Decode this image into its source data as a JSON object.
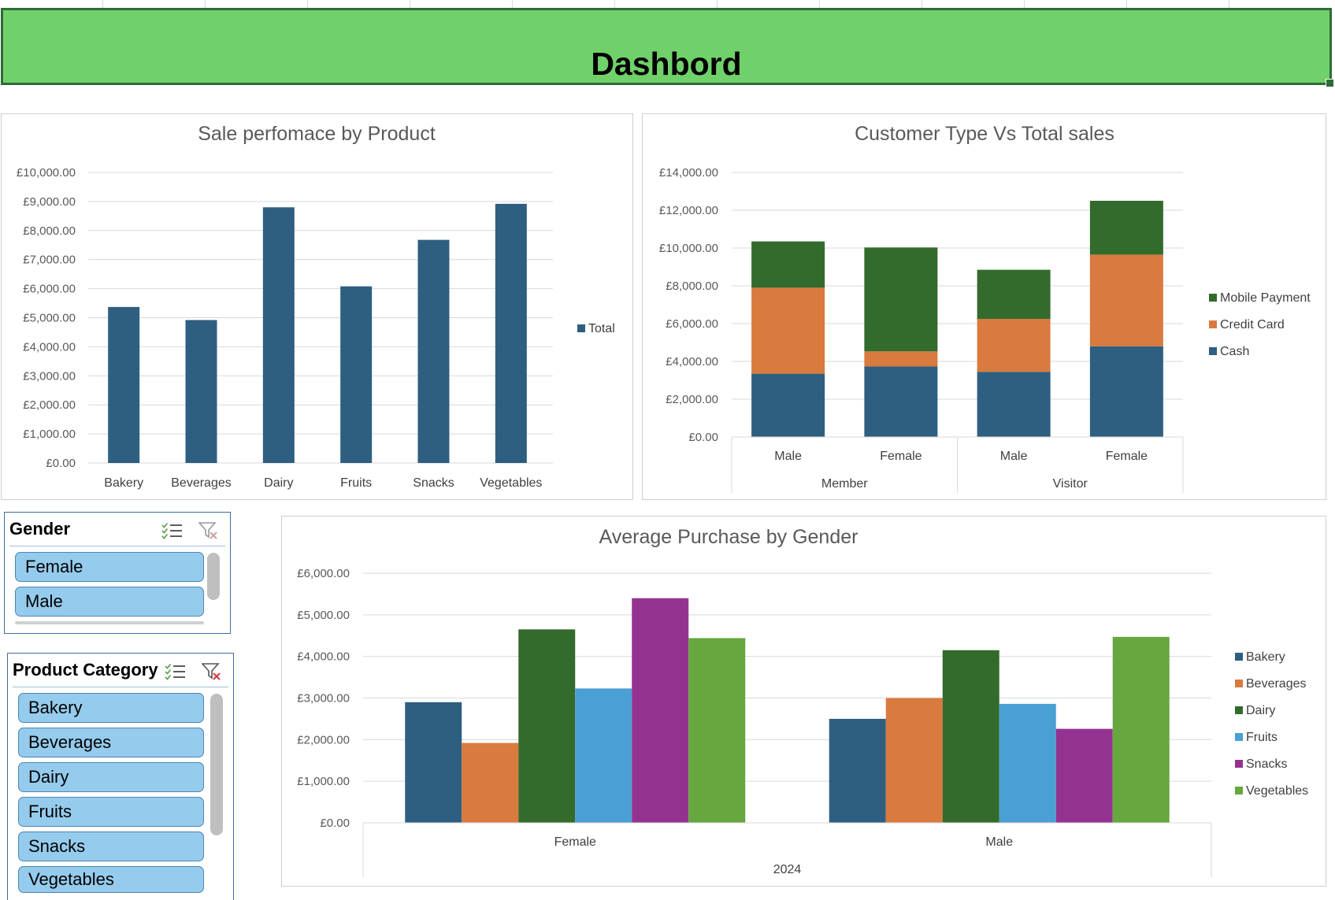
{
  "dashboard": {
    "title": "Dashbord"
  },
  "chart_data": [
    {
      "type": "bar",
      "title": "Sale perfomace by Product",
      "categories": [
        "Bakery",
        "Beverages",
        "Dairy",
        "Fruits",
        "Snacks",
        "Vegetables"
      ],
      "series": [
        {
          "name": "Total",
          "values": [
            5370,
            4920,
            8800,
            6080,
            7680,
            8920
          ]
        }
      ],
      "ylim": [
        0,
        10000
      ],
      "yticks": [
        "£0.00",
        "£1,000.00",
        "£2,000.00",
        "£3,000.00",
        "£4,000.00",
        "£5,000.00",
        "£6,000.00",
        "£7,000.00",
        "£8,000.00",
        "£9,000.00",
        "£10,000.00"
      ],
      "legend": "right",
      "grid": true,
      "color": "#2e5f80"
    },
    {
      "type": "bar",
      "stacked": true,
      "title": "Customer Type Vs Total sales",
      "groups": [
        "Member",
        "Visitor"
      ],
      "categories": [
        "Male",
        "Female",
        "Male",
        "Female"
      ],
      "series": [
        {
          "name": "Cash",
          "values": [
            3350,
            3730,
            3450,
            4800
          ],
          "color": "#2e5f80"
        },
        {
          "name": "Credit Card",
          "values": [
            4550,
            800,
            2800,
            4850
          ],
          "color": "#d97a3f"
        },
        {
          "name": "Mobile Payment",
          "values": [
            2450,
            5500,
            2600,
            2850
          ],
          "color": "#336b2d"
        }
      ],
      "ylim": [
        0,
        14000
      ],
      "yticks": [
        "£0.00",
        "£2,000.00",
        "£4,000.00",
        "£6,000.00",
        "£8,000.00",
        "£10,000.00",
        "£12,000.00",
        "£14,000.00"
      ],
      "legend": "right",
      "grid": true
    },
    {
      "type": "bar",
      "title": "Average Purchase by Gender",
      "group_label": "2024",
      "categories": [
        "Female",
        "Male"
      ],
      "series": [
        {
          "name": "Bakery",
          "values": [
            2900,
            2500
          ],
          "color": "#2e5f80"
        },
        {
          "name": "Beverages",
          "values": [
            1920,
            3000
          ],
          "color": "#d97a3f"
        },
        {
          "name": "Dairy",
          "values": [
            4650,
            4150
          ],
          "color": "#336b2d"
        },
        {
          "name": "Fruits",
          "values": [
            3230,
            2860
          ],
          "color": "#4a9fd4"
        },
        {
          "name": "Snacks",
          "values": [
            5400,
            2260
          ],
          "color": "#94338f"
        },
        {
          "name": "Vegetables",
          "values": [
            4440,
            4470
          ],
          "color": "#66a740"
        }
      ],
      "ylim": [
        0,
        6000
      ],
      "yticks": [
        "£0.00",
        "£1,000.00",
        "£2,000.00",
        "£3,000.00",
        "£4,000.00",
        "£5,000.00",
        "£6,000.00"
      ],
      "legend": "right",
      "grid": true
    }
  ],
  "slicers": {
    "gender": {
      "title": "Gender",
      "items": [
        "Female",
        "Male"
      ]
    },
    "product": {
      "title": "Product Category",
      "items": [
        "Bakery",
        "Beverages",
        "Dairy",
        "Fruits",
        "Snacks",
        "Vegetables"
      ]
    }
  },
  "colors": {
    "band": "#70d16a",
    "band_border": "#2f6b3a",
    "slicer_item": "#95cbec",
    "slicer_border": "#3c6e9f"
  }
}
